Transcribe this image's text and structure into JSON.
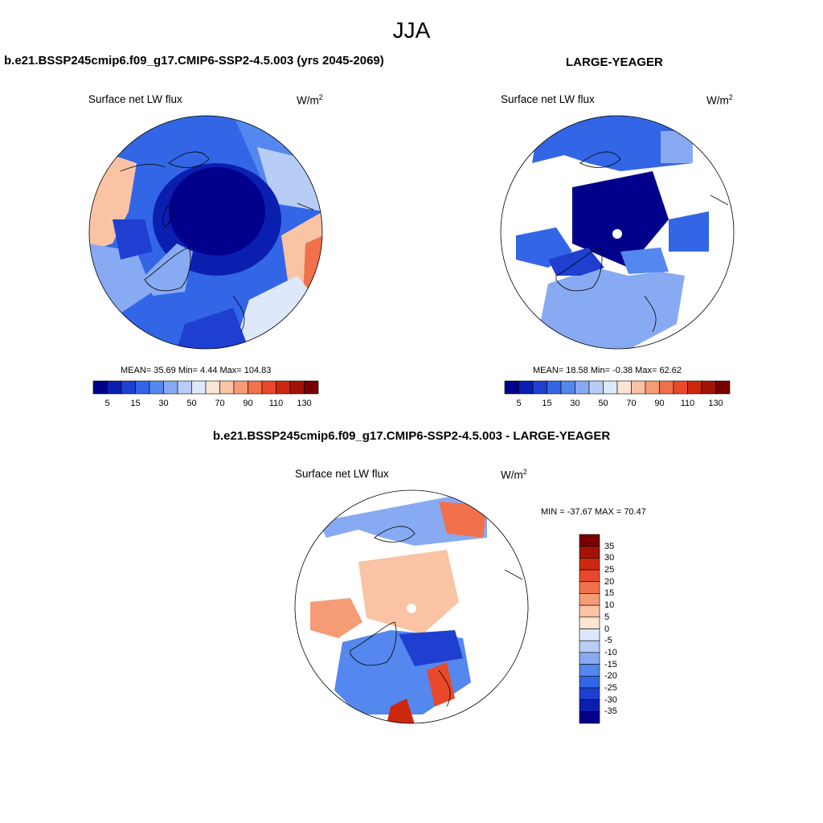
{
  "figure": {
    "season": "JJA"
  },
  "panels": {
    "top_left": {
      "title": "b.e21.BSSP245cmip6.f09_g17.CMIP6-SSP2-4.5.003 (yrs 2045-2069)",
      "field": "Surface net LW flux",
      "units_base": "W/m",
      "units_exp": "2",
      "stats": "MEAN=  35.69  Min=   4.44  Max= 104.83"
    },
    "top_right": {
      "title": "LARGE-YEAGER",
      "field": "Surface net LW flux",
      "units_base": "W/m",
      "units_exp": "2",
      "stats": "MEAN=  18.58  Min=  -0.38  Max=  62.62"
    },
    "bottom": {
      "title": "b.e21.BSSP245cmip6.f09_g17.CMIP6-SSP2-4.5.003 - LARGE-YEAGER",
      "field": "Surface net LW flux",
      "units_base": "W/m",
      "units_exp": "2",
      "stats": "MIN = -37.67 MAX =  70.47"
    }
  },
  "colorbars": {
    "absolute": {
      "colors": [
        "#00008b",
        "#0a1fb0",
        "#1f3fd0",
        "#3366e6",
        "#5588ee",
        "#88aaf2",
        "#b8cdf6",
        "#dde8fa",
        "#fde4d4",
        "#f9c3a4",
        "#f59c76",
        "#f1714c",
        "#e8492a",
        "#cc2810",
        "#a31305",
        "#760000"
      ],
      "ticks": [
        "5",
        "15",
        "30",
        "50",
        "70",
        "90",
        "110",
        "130"
      ]
    },
    "difference": {
      "colors": [
        "#760000",
        "#a31305",
        "#cc2810",
        "#e8492a",
        "#f1714c",
        "#f59c76",
        "#f9c3a4",
        "#fde4d4",
        "#dde8fa",
        "#b8cdf6",
        "#88aaf2",
        "#5588ee",
        "#3366e6",
        "#1f3fd0",
        "#0a1fb0",
        "#00008b"
      ],
      "ticks": [
        "35",
        "30",
        "25",
        "20",
        "15",
        "10",
        "5",
        "0",
        "-5",
        "-10",
        "-15",
        "-20",
        "-25",
        "-30",
        "-35"
      ]
    }
  },
  "map_colors": {
    "ocean_deep": "#00008b",
    "ocean_mid": "#1f3fd0",
    "ocean_light": "#5588ee",
    "ocean_pale": "#b8cdf6",
    "land_warm": "#f9c3a4",
    "land_hot": "#e8492a",
    "masked": "#ffffff"
  }
}
